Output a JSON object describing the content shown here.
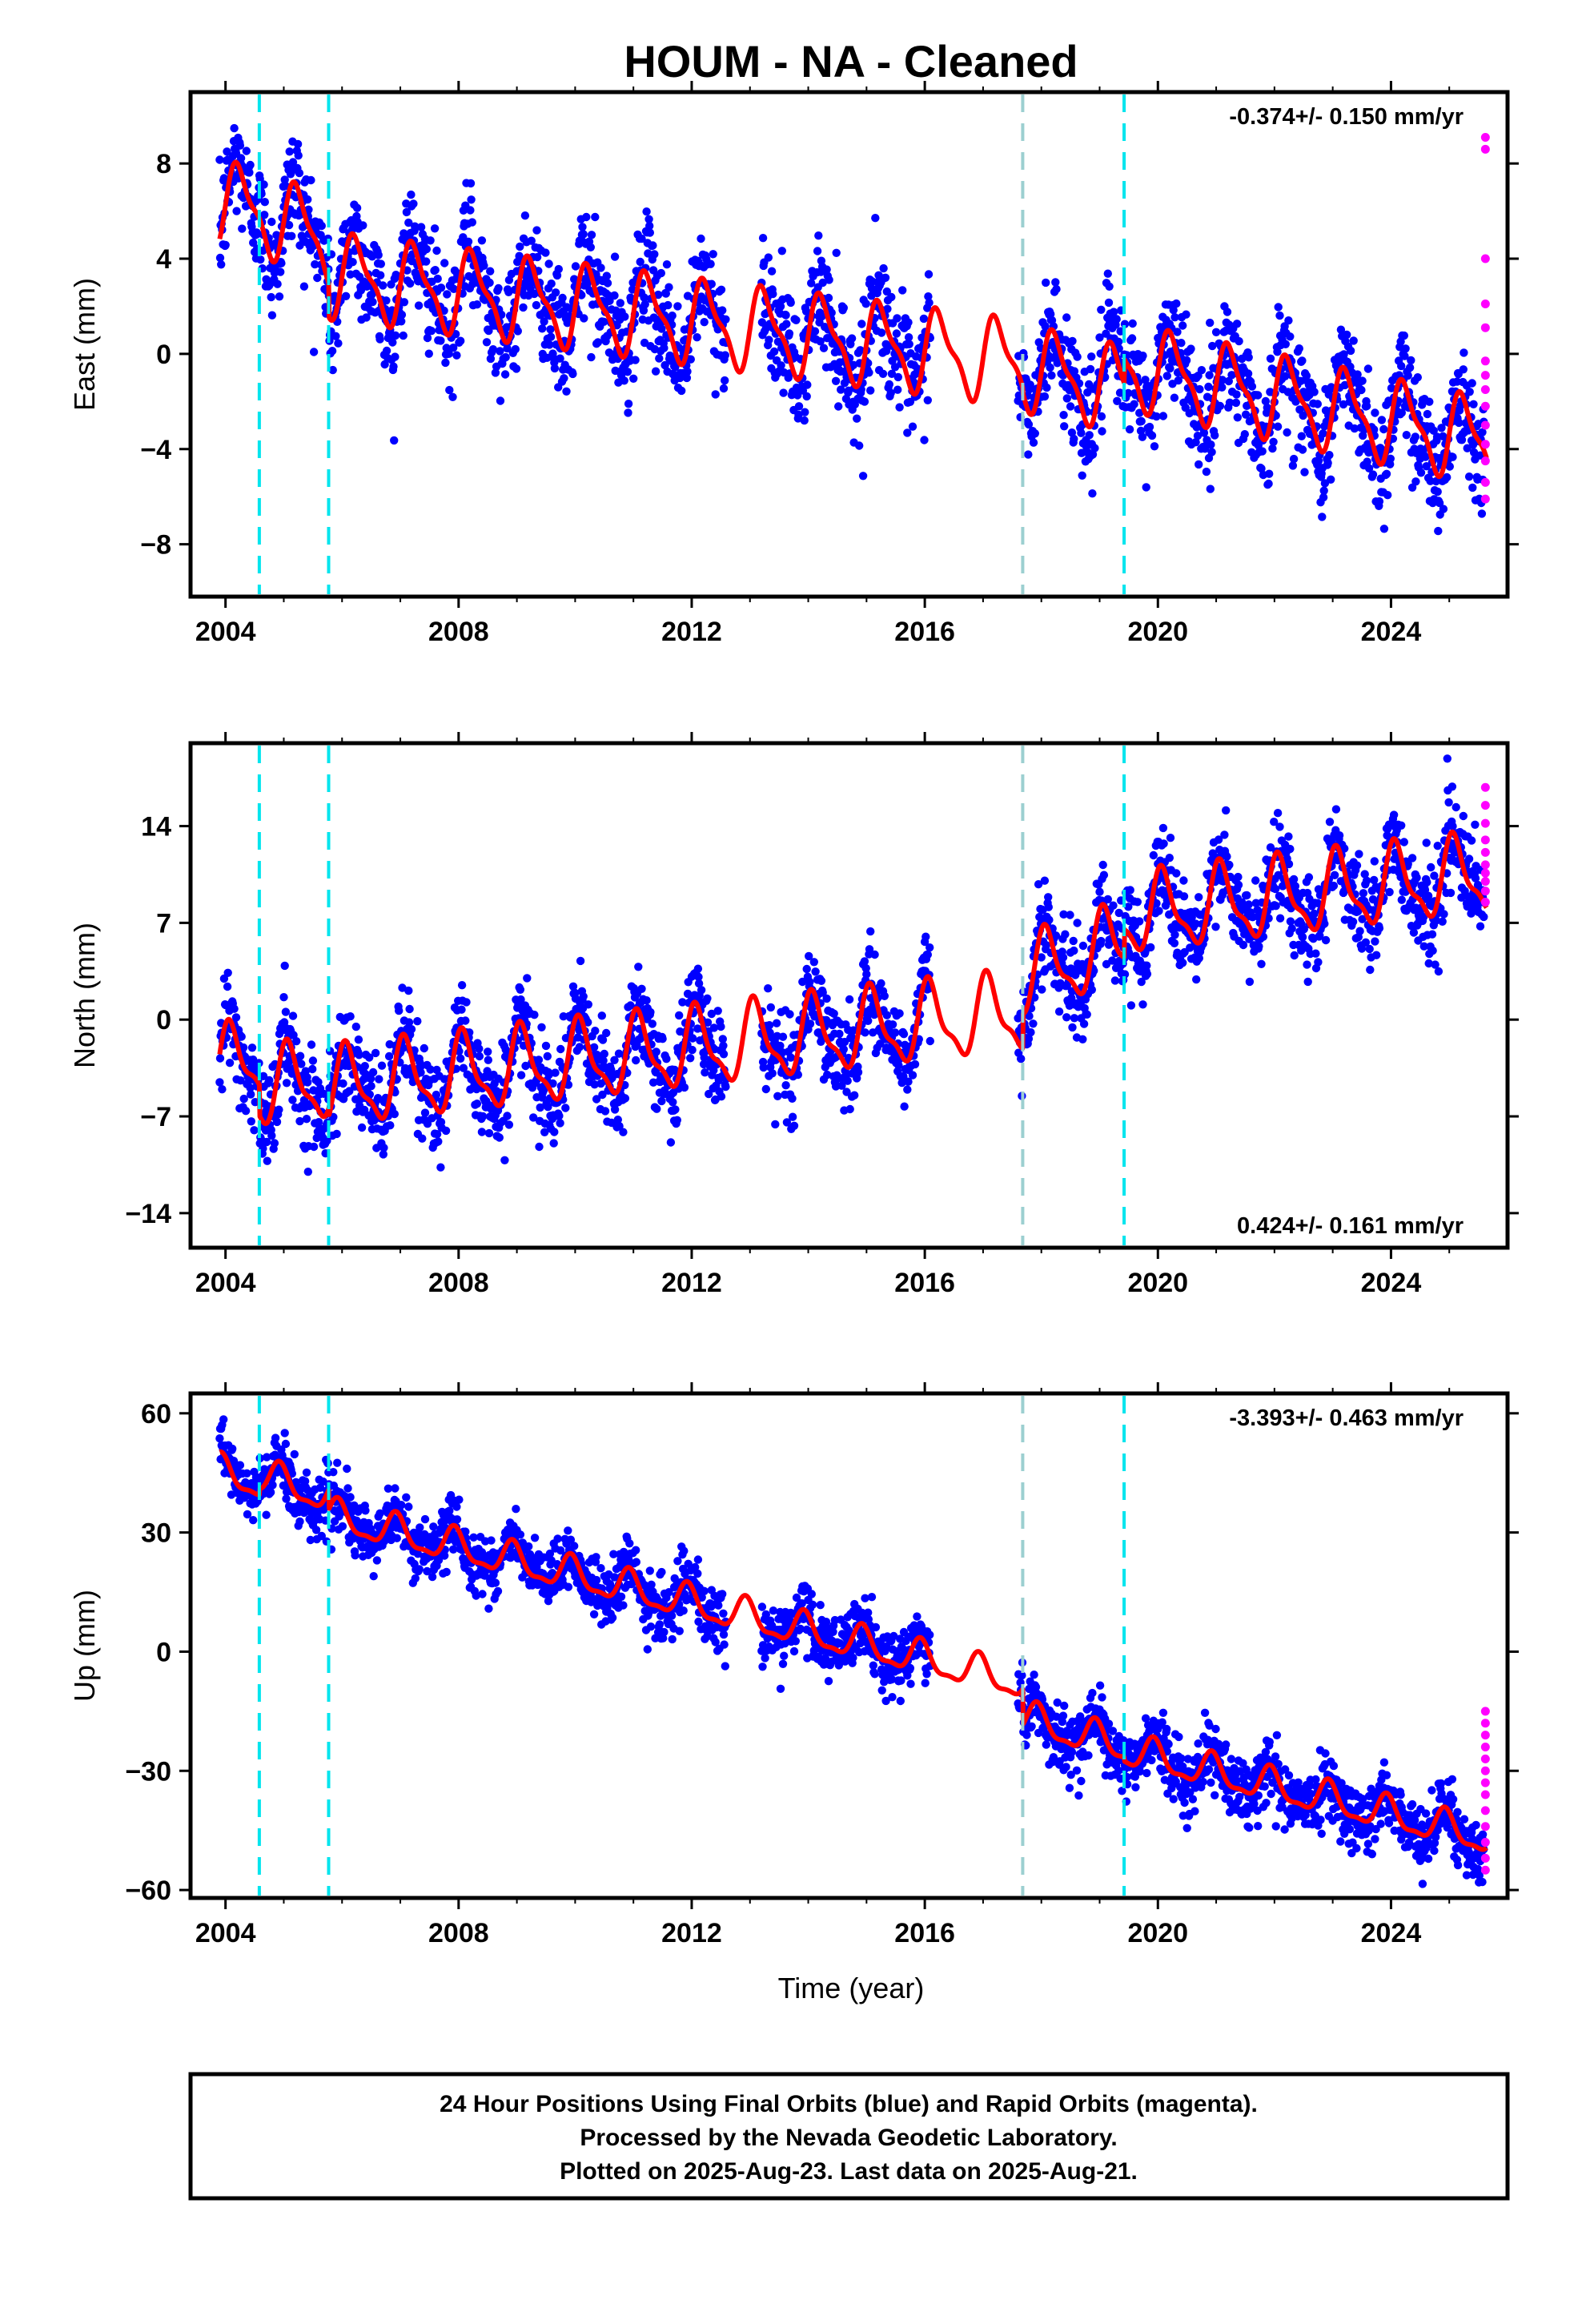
{
  "title": "HOUM  - NA - Cleaned",
  "xlabel": "Time (year)",
  "footer": [
    "24 Hour Positions Using Final Orbits (blue) and Rapid Orbits (magenta).",
    "Processed by the Nevada Geodetic Laboratory.",
    "Plotted on 2025-Aug-23. Last data on 2025-Aug-21."
  ],
  "colors": {
    "final": "#0000ff",
    "rapid": "#ff00ff",
    "model": "#ff0000",
    "event": "#00e5ee",
    "event_gray": "#9ccfd0"
  },
  "chart_data": [
    {
      "type": "scatter",
      "panel": "east",
      "ylabel": "East (mm)",
      "rate": "-0.374+/- 0.150 mm/yr",
      "rate_position": "top-right",
      "xlim": [
        2003.4,
        2026.0
      ],
      "ylim": [
        -10.2,
        11.0
      ],
      "xticks": [
        2004,
        2008,
        2012,
        2016,
        2020,
        2024
      ],
      "yticks": [
        8,
        4,
        0,
        -4,
        -8
      ],
      "event_lines": [
        2004.58,
        2005.77,
        2017.68,
        2019.42
      ],
      "gap": [
        2016.1,
        2017.6
      ],
      "trend_segments": [
        {
          "x": [
            2003.9,
            2004.58
          ],
          "y": [
            6.3,
            6.0
          ]
        },
        {
          "x": [
            2004.58,
            2005.77
          ],
          "y": [
            6.0,
            4.7
          ]
        },
        {
          "x": [
            2005.77,
            2017.68
          ],
          "y": [
            3.3,
            -0.4
          ]
        },
        {
          "x": [
            2017.68,
            2019.42
          ],
          "y": [
            -0.6,
            -1.5
          ]
        },
        {
          "x": [
            2019.42,
            2025.64
          ],
          "y": [
            -0.5,
            -3.7
          ]
        }
      ],
      "seasonal_amplitude": 1.6,
      "scatter_sd": 1.2,
      "rapid_points": [
        9.1,
        8.6,
        4.0,
        2.1,
        1.1,
        -0.3,
        -0.9,
        -1.5,
        -2.2,
        -3.0,
        -3.8,
        -4.5,
        -5.4,
        -6.1
      ],
      "rapid_x": 2025.62
    },
    {
      "type": "scatter",
      "panel": "north",
      "ylabel": "North (mm)",
      "rate": "0.424+/- 0.161 mm/yr",
      "rate_position": "bottom-right",
      "xlim": [
        2003.4,
        2026.0
      ],
      "ylim": [
        -16.5,
        20.0
      ],
      "xticks": [
        2004,
        2008,
        2012,
        2016,
        2020,
        2024
      ],
      "yticks": [
        14,
        7,
        0,
        -7,
        -14
      ],
      "event_lines": [
        2004.58,
        2005.77,
        2017.68,
        2019.42
      ],
      "gap": [
        2016.1,
        2017.6
      ],
      "trend_segments": [
        {
          "x": [
            2003.9,
            2004.58
          ],
          "y": [
            -3.5,
            -2.8
          ]
        },
        {
          "x": [
            2004.58,
            2005.77
          ],
          "y": [
            -5.0,
            -4.4
          ]
        },
        {
          "x": [
            2005.77,
            2017.68
          ],
          "y": [
            -5.0,
            0.5
          ]
        },
        {
          "x": [
            2017.68,
            2019.42
          ],
          "y": [
            3.0,
            5.5
          ]
        },
        {
          "x": [
            2019.42,
            2025.64
          ],
          "y": [
            7.5,
            10.5
          ]
        }
      ],
      "seasonal_amplitude": 2.6,
      "scatter_sd": 1.7,
      "rapid_points": [
        16.8,
        15.5,
        14.2,
        13.0,
        12.1,
        11.2,
        10.6,
        10.0,
        9.3,
        8.5
      ],
      "rapid_x": 2025.62
    },
    {
      "type": "scatter",
      "panel": "up",
      "ylabel": "Up (mm)",
      "rate": "-3.393+/- 0.463 mm/yr",
      "rate_position": "top-right",
      "xlim": [
        2003.4,
        2026.0
      ],
      "ylim": [
        -62.0,
        65.0
      ],
      "xticks": [
        2004,
        2008,
        2012,
        2016,
        2020,
        2024
      ],
      "yticks": [
        60,
        30,
        0,
        -30,
        -60
      ],
      "event_lines": [
        2004.58,
        2005.77,
        2017.68,
        2019.42
      ],
      "gap": [
        2016.1,
        2017.6
      ],
      "trend_segments": [
        {
          "x": [
            2003.9,
            2004.58
          ],
          "y": [
            45.0,
            42.5
          ]
        },
        {
          "x": [
            2004.58,
            2005.77
          ],
          "y": [
            44.0,
            39.0
          ]
        },
        {
          "x": [
            2005.77,
            2017.68
          ],
          "y": [
            34.0,
            -8.0
          ]
        },
        {
          "x": [
            2017.68,
            2019.42
          ],
          "y": [
            -17.0,
            -24.0
          ]
        },
        {
          "x": [
            2019.42,
            2025.64
          ],
          "y": [
            -25.0,
            -47.0
          ]
        }
      ],
      "seasonal_amplitude": 4.0,
      "scatter_sd": 3.8,
      "rapid_points": [
        -15.0,
        -18.0,
        -21.0,
        -24.0,
        -27.0,
        -30.0,
        -33.0,
        -36.0,
        -40.0,
        -44.0,
        -48.0,
        -52.0,
        -55.0
      ],
      "rapid_x": 2025.62
    }
  ]
}
